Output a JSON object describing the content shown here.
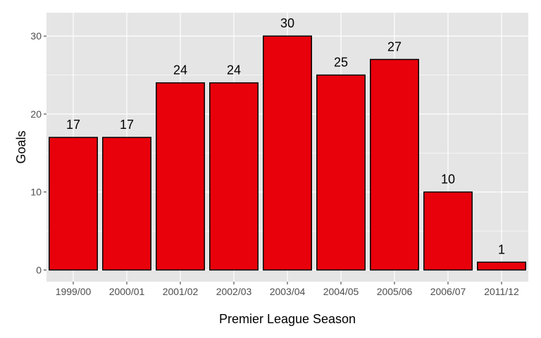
{
  "chart_data": {
    "type": "bar",
    "title": "",
    "xlabel": "Premier League Season",
    "ylabel": "Goals",
    "categories": [
      "1999/00",
      "2000/01",
      "2001/02",
      "2002/03",
      "2003/04",
      "2004/05",
      "2005/06",
      "2006/07",
      "2011/12"
    ],
    "values": [
      17,
      17,
      24,
      24,
      30,
      25,
      27,
      10,
      1
    ],
    "ylim": [
      -1.5,
      33
    ],
    "yticks": [
      0,
      10,
      20,
      30
    ],
    "grid": true,
    "legend": "none",
    "colors": {
      "bar_fill": "#e8000b",
      "bar_stroke": "#000000",
      "panel": "#e5e5e5",
      "grid": "#ffffff"
    }
  }
}
